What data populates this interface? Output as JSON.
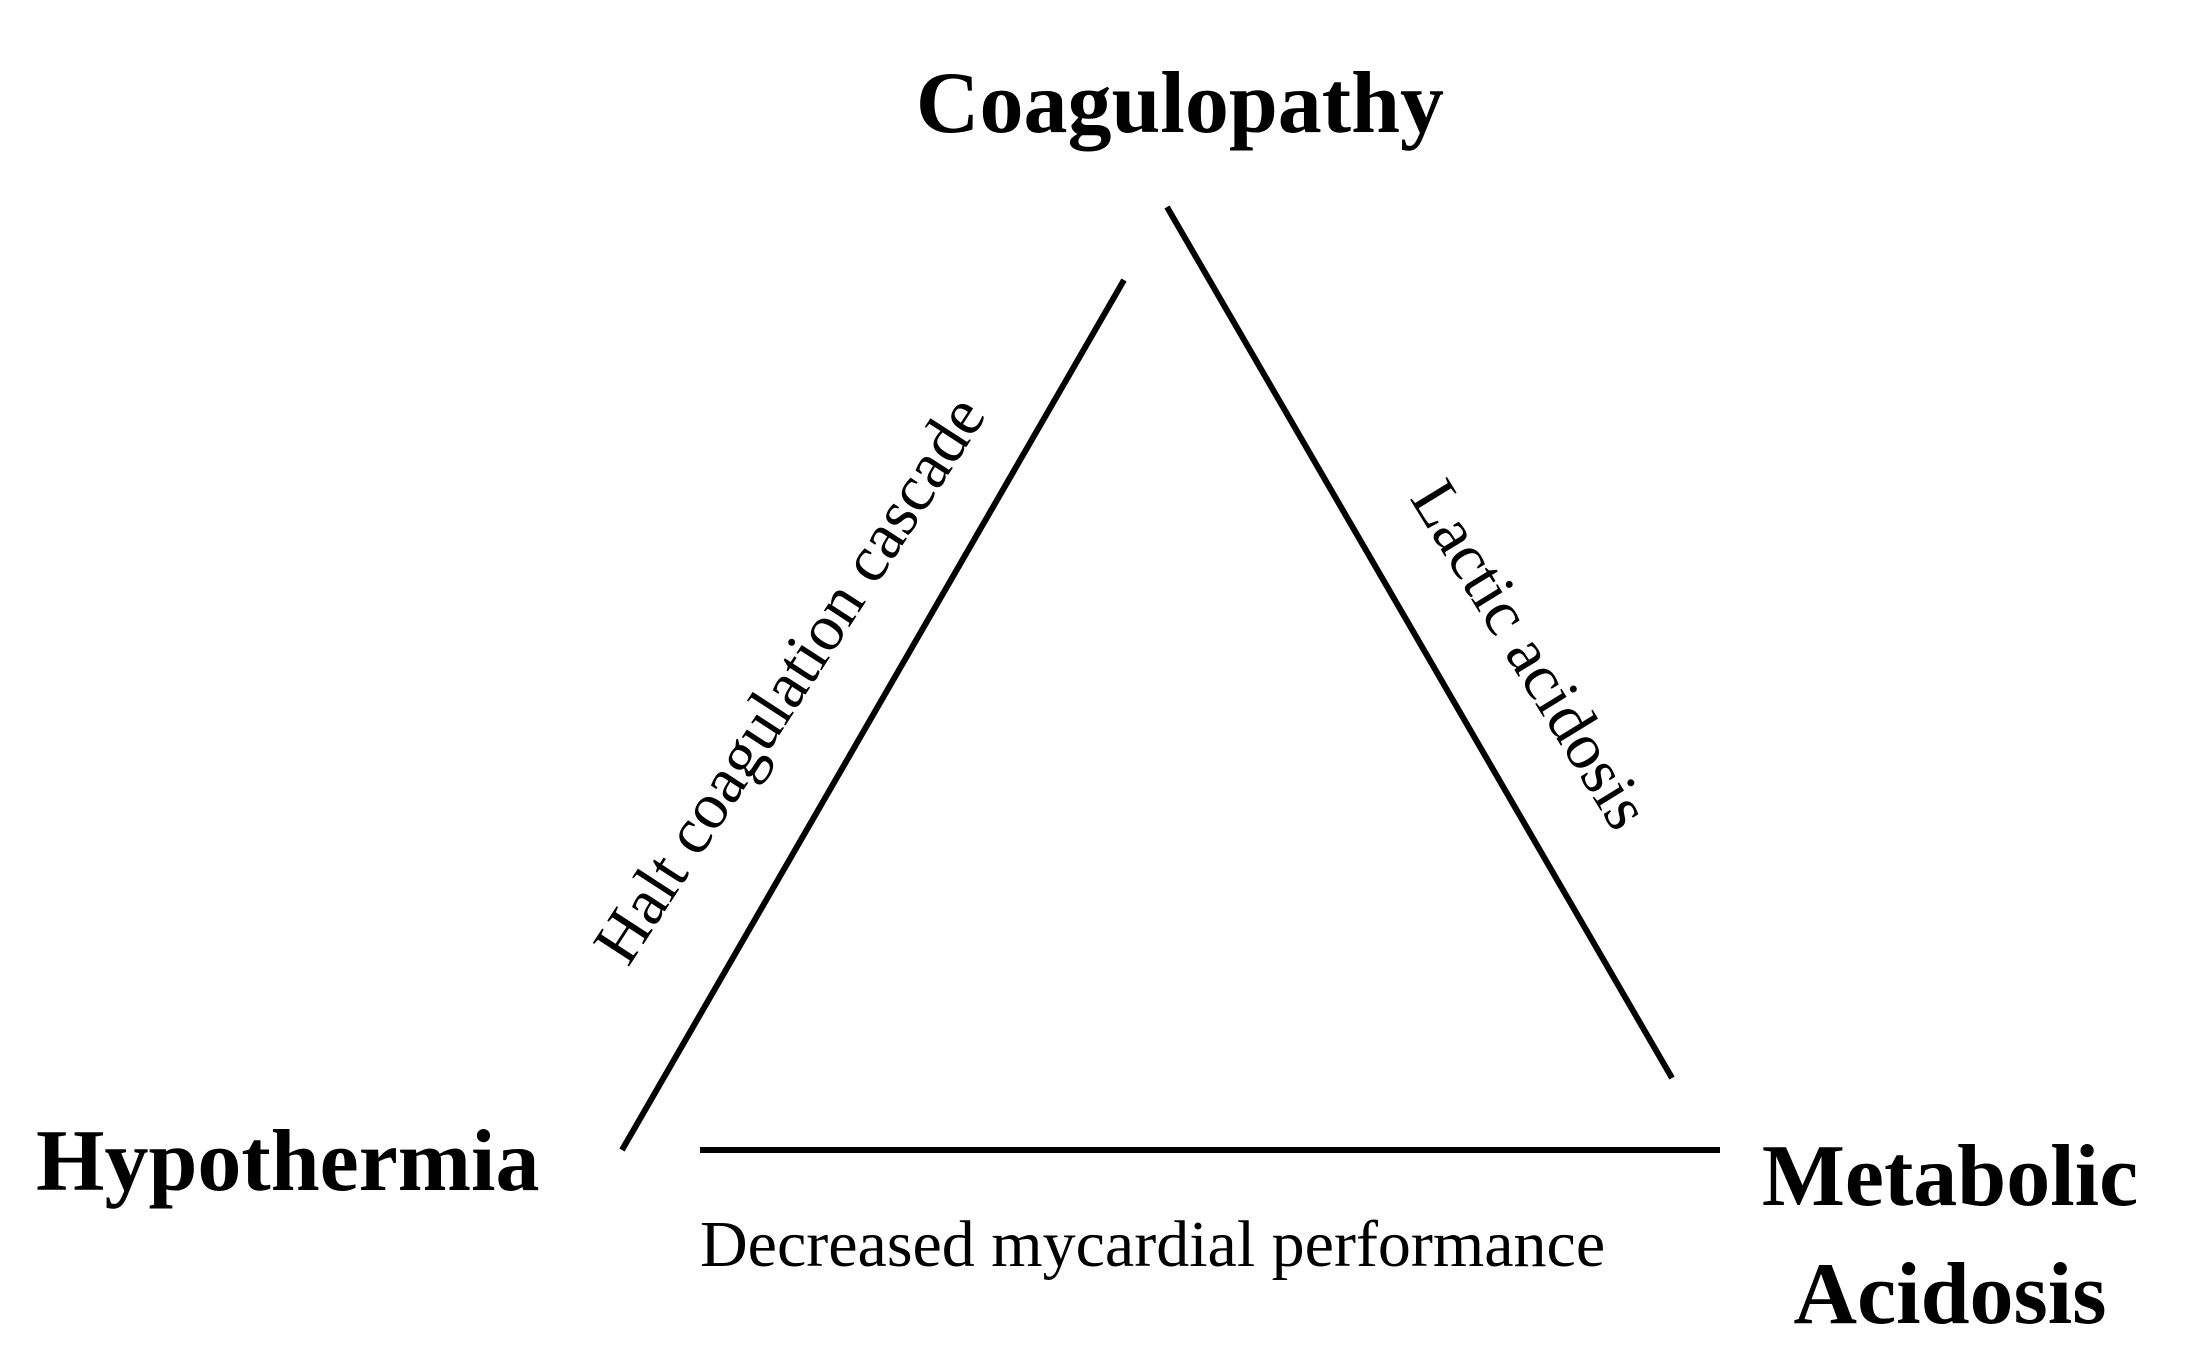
{
  "diagram": {
    "nodes": {
      "top": "Coagulopathy",
      "left": "Hypothermia",
      "right_line1": "Metabolic",
      "right_line2": "Acidosis"
    },
    "edges": {
      "left": "Halt coagulation cascade",
      "right": "Lactic acidosis",
      "bottom": "Decreased mycardial performance"
    },
    "line_color": "#000000"
  }
}
